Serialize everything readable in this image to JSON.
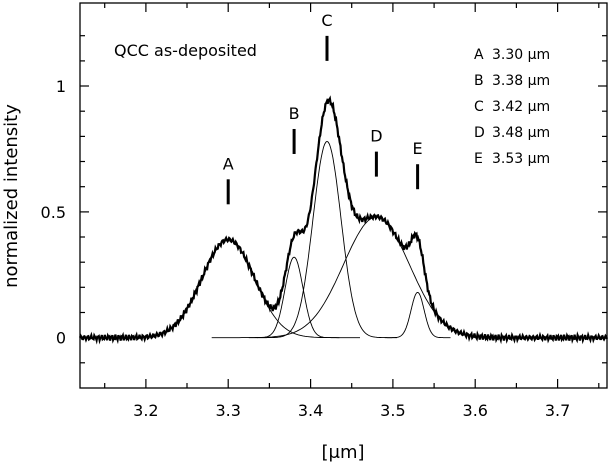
{
  "chart_data": {
    "type": "line",
    "title": "",
    "xlabel": "[μm]",
    "ylabel": "normalized intensity",
    "xlim": [
      3.12,
      3.76
    ],
    "ylim": [
      -0.2,
      1.33
    ],
    "xticks": [
      3.2,
      3.3,
      3.4,
      3.5,
      3.6,
      3.7
    ],
    "xtick_labels": [
      "3.2",
      "3.3",
      "3.4",
      "3.5",
      "3.6",
      "3.7"
    ],
    "yticks": [
      0,
      0.5,
      1
    ],
    "ytick_labels": [
      "0",
      "0.5",
      "1"
    ],
    "annotation": "QCC as-deposited",
    "components": [
      {
        "label": "A",
        "center": 3.3,
        "amplitude": 0.39,
        "sigma": 0.032,
        "mark_y": 0.53
      },
      {
        "label": "B",
        "center": 3.38,
        "amplitude": 0.32,
        "sigma": 0.011,
        "mark_y": 0.73
      },
      {
        "label": "C",
        "center": 3.42,
        "amplitude": 0.78,
        "sigma": 0.017,
        "mark_y": 1.1
      },
      {
        "label": "D",
        "center": 3.48,
        "amplitude": 0.48,
        "sigma": 0.04,
        "mark_y": 0.64
      },
      {
        "label": "E",
        "center": 3.53,
        "amplitude": 0.18,
        "sigma": 0.008,
        "mark_y": 0.59
      }
    ],
    "legend": [
      {
        "letter": "A",
        "text": "3.30 μm"
      },
      {
        "letter": "B",
        "text": "3.38 μm"
      },
      {
        "letter": "C",
        "text": "3.42 μm"
      },
      {
        "letter": "D",
        "text": "3.48 μm"
      },
      {
        "letter": "E",
        "text": "3.53 μm"
      }
    ],
    "legend_position": "top-right",
    "grid": false
  }
}
